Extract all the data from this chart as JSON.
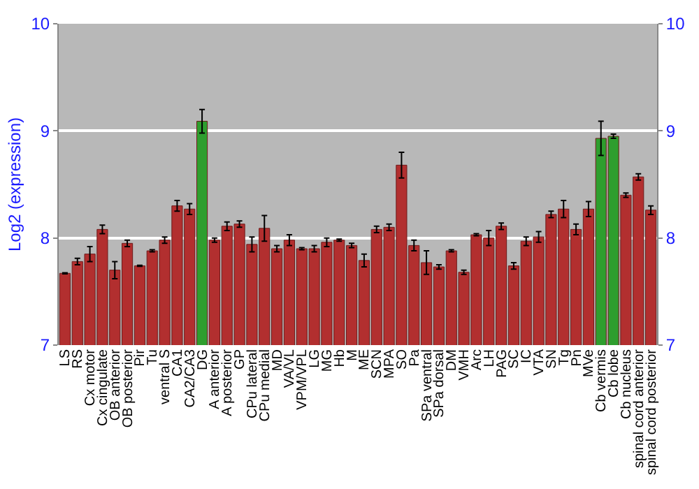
{
  "chart_data": {
    "type": "bar",
    "ylabel": "Log2 (expression)",
    "categories": [
      "LS",
      "RS",
      "Cx motor",
      "Cx cingulate",
      "OB anterior",
      "OB posterior",
      "Pir",
      "Tu",
      "ventral S",
      "CA1",
      "CA2/CA3",
      "DG",
      "A anterior",
      "A posterior",
      "GP",
      "CPu lateral",
      "CPu medial",
      "MD",
      "VA/VL",
      "VPM/VPL",
      "LG",
      "MG",
      "Hb",
      "M",
      "ME",
      "SCN",
      "MPA",
      "SO",
      "Pa",
      "SPa ventral",
      "SPa dorsal",
      "DM",
      "VMH",
      "Arc",
      "LH",
      "PAG",
      "SC",
      "IC",
      "VTA",
      "SN",
      "Tg",
      "Pn",
      "MVe",
      "Cb vermis",
      "Cb lobe",
      "Cb nucleus",
      "spinal cord anterior",
      "spinal cord posterior"
    ],
    "values": [
      7.67,
      7.78,
      7.85,
      8.08,
      7.7,
      7.95,
      7.74,
      7.88,
      7.98,
      8.3,
      8.27,
      9.09,
      7.98,
      8.11,
      8.13,
      7.94,
      8.09,
      7.9,
      7.98,
      7.9,
      7.9,
      7.96,
      7.98,
      7.93,
      7.79,
      8.08,
      8.1,
      8.68,
      7.93,
      7.77,
      7.73,
      7.88,
      7.68,
      8.03,
      8.0,
      8.11,
      7.74,
      7.97,
      8.01,
      8.22,
      8.27,
      8.08,
      8.27,
      8.93,
      8.95,
      8.4,
      8.57,
      8.26
    ],
    "errors": [
      0.005,
      0.03,
      0.07,
      0.04,
      0.08,
      0.03,
      0.005,
      0.01,
      0.03,
      0.05,
      0.05,
      0.11,
      0.02,
      0.04,
      0.03,
      0.07,
      0.12,
      0.03,
      0.05,
      0.01,
      0.03,
      0.04,
      0.01,
      0.02,
      0.06,
      0.03,
      0.03,
      0.12,
      0.05,
      0.11,
      0.02,
      0.01,
      0.02,
      0.01,
      0.07,
      0.03,
      0.03,
      0.04,
      0.05,
      0.03,
      0.08,
      0.05,
      0.07,
      0.16,
      0.02,
      0.02,
      0.03,
      0.04
    ],
    "colors": [
      "#b22f2f",
      "#b22f2f",
      "#b22f2f",
      "#b22f2f",
      "#b22f2f",
      "#b22f2f",
      "#b22f2f",
      "#b22f2f",
      "#b22f2f",
      "#b22f2f",
      "#b22f2f",
      "#2e9e2e",
      "#b22f2f",
      "#b22f2f",
      "#b22f2f",
      "#b22f2f",
      "#b22f2f",
      "#b22f2f",
      "#b22f2f",
      "#b22f2f",
      "#b22f2f",
      "#b22f2f",
      "#b22f2f",
      "#b22f2f",
      "#b22f2f",
      "#b22f2f",
      "#b22f2f",
      "#b22f2f",
      "#b22f2f",
      "#b22f2f",
      "#b22f2f",
      "#b22f2f",
      "#b22f2f",
      "#b22f2f",
      "#b22f2f",
      "#b22f2f",
      "#b22f2f",
      "#b22f2f",
      "#b22f2f",
      "#b22f2f",
      "#b22f2f",
      "#b22f2f",
      "#b22f2f",
      "#2e9e2e",
      "#2e9e2e",
      "#b22f2f",
      "#b22f2f",
      "#b22f2f"
    ],
    "ylim": [
      7,
      10
    ],
    "yticks": [
      7,
      8,
      9,
      10
    ],
    "y2lim": [
      7,
      10
    ],
    "y2ticks": [
      7,
      8,
      9,
      10
    ],
    "grid": "y"
  }
}
